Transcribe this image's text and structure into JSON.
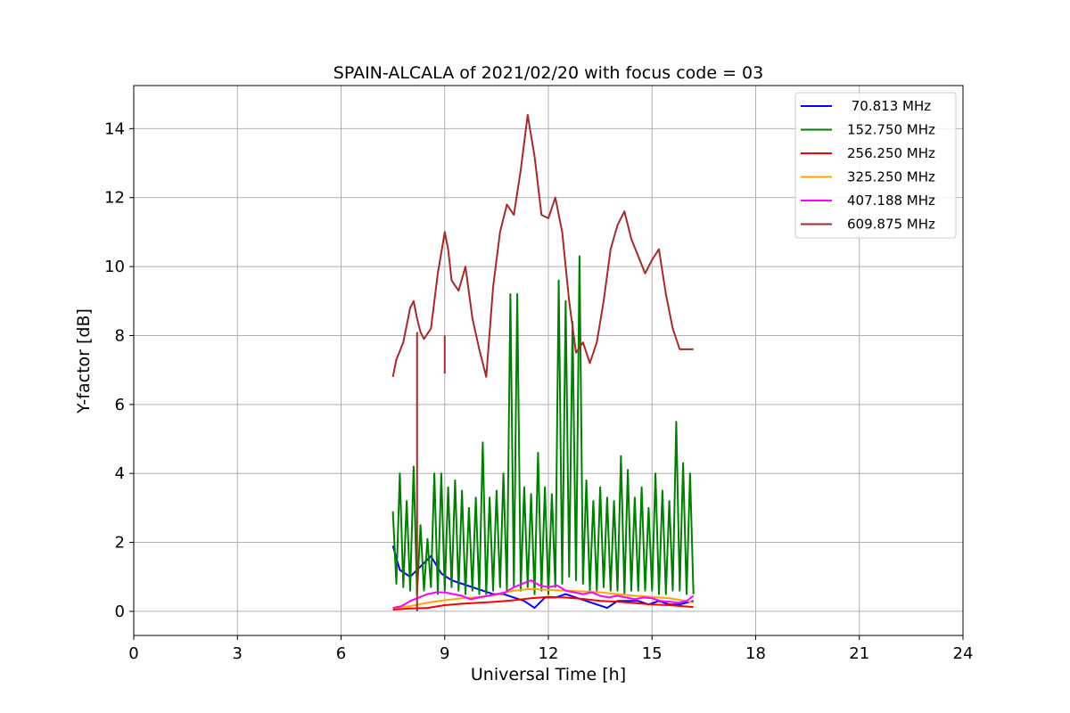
{
  "chart_data": {
    "type": "line",
    "title": "SPAIN-ALCALA of 2021/02/20 with focus code = 03",
    "xlabel": "Universal Time [h]",
    "ylabel": "Y-factor [dB]",
    "xlim": [
      0,
      24
    ],
    "ylim": [
      -0.7,
      15.25
    ],
    "xticks": [
      0,
      3,
      6,
      9,
      12,
      15,
      18,
      21,
      24
    ],
    "yticks": [
      0,
      2,
      4,
      6,
      8,
      10,
      12,
      14
    ],
    "grid": true,
    "legend_position": "top-right",
    "series": [
      {
        "name": " 70.813 MHz",
        "color": "#0000ff",
        "x": [
          7.5,
          7.7,
          8.0,
          8.3,
          8.6,
          8.9,
          9.2,
          9.5,
          9.8,
          10.1,
          10.4,
          10.7,
          11.0,
          11.3,
          11.6,
          11.9,
          12.2,
          12.5,
          12.8,
          13.1,
          13.4,
          13.7,
          14.0,
          14.3,
          14.6,
          14.9,
          15.2,
          15.5,
          15.8,
          16.2
        ],
        "y": [
          1.9,
          1.2,
          1.0,
          1.3,
          1.6,
          1.1,
          0.9,
          0.8,
          0.7,
          0.6,
          0.5,
          0.5,
          0.4,
          0.3,
          0.1,
          0.4,
          0.4,
          0.5,
          0.4,
          0.3,
          0.2,
          0.1,
          0.3,
          0.3,
          0.3,
          0.2,
          0.3,
          0.2,
          0.2,
          0.3
        ]
      },
      {
        "name": "152.750 MHz",
        "color": "#008000",
        "x": [
          7.5,
          7.6,
          7.7,
          7.8,
          7.9,
          8.0,
          8.1,
          8.2,
          8.3,
          8.4,
          8.5,
          8.6,
          8.7,
          8.8,
          8.9,
          9.0,
          9.1,
          9.2,
          9.3,
          9.4,
          9.5,
          9.6,
          9.7,
          9.8,
          9.9,
          10.0,
          10.1,
          10.2,
          10.3,
          10.4,
          10.5,
          10.6,
          10.7,
          10.8,
          10.9,
          11.0,
          11.1,
          11.2,
          11.3,
          11.4,
          11.5,
          11.6,
          11.7,
          11.8,
          11.9,
          12.0,
          12.1,
          12.2,
          12.3,
          12.4,
          12.5,
          12.6,
          12.7,
          12.8,
          12.9,
          13.0,
          13.1,
          13.2,
          13.3,
          13.4,
          13.5,
          13.6,
          13.7,
          13.8,
          13.9,
          14.0,
          14.1,
          14.2,
          14.3,
          14.4,
          14.5,
          14.6,
          14.7,
          14.8,
          14.9,
          15.0,
          15.1,
          15.2,
          15.3,
          15.4,
          15.5,
          15.6,
          15.7,
          15.8,
          15.9,
          16.0,
          16.1,
          16.2
        ],
        "y": [
          2.9,
          0.8,
          4.0,
          0.7,
          3.2,
          0.6,
          4.2,
          0.5,
          2.5,
          0.6,
          2.1,
          0.7,
          4.0,
          0.5,
          4.0,
          0.6,
          3.6,
          0.7,
          3.8,
          0.6,
          3.5,
          0.5,
          3.0,
          0.6,
          3.3,
          0.5,
          4.9,
          0.5,
          3.3,
          0.6,
          3.5,
          0.7,
          4.0,
          0.6,
          9.2,
          0.7,
          9.2,
          0.6,
          3.6,
          0.7,
          3.4,
          0.5,
          4.6,
          0.6,
          3.6,
          0.5,
          3.4,
          0.7,
          9.6,
          0.8,
          9.0,
          1.0,
          8.4,
          0.9,
          10.3,
          0.8,
          3.8,
          0.6,
          3.2,
          0.6,
          3.6,
          0.7,
          3.3,
          0.6,
          3.2,
          0.6,
          4.5,
          0.5,
          4.1,
          0.6,
          3.3,
          0.6,
          3.6,
          0.6,
          3.0,
          0.6,
          4.0,
          0.5,
          3.5,
          0.5,
          3.2,
          0.6,
          5.5,
          0.6,
          4.3,
          0.5,
          4.0,
          0.5
        ]
      },
      {
        "name": "256.250 MHz",
        "color": "#ff0000",
        "x": [
          7.5,
          8.0,
          8.5,
          9.0,
          9.5,
          10.0,
          10.5,
          11.0,
          11.5,
          12.0,
          12.5,
          13.0,
          13.5,
          14.0,
          14.5,
          15.0,
          15.5,
          16.0,
          16.2
        ],
        "y": [
          0.05,
          0.08,
          0.1,
          0.18,
          0.22,
          0.25,
          0.28,
          0.32,
          0.38,
          0.42,
          0.4,
          0.36,
          0.3,
          0.28,
          0.24,
          0.2,
          0.18,
          0.14,
          0.12
        ]
      },
      {
        "name": "325.250 MHz",
        "color": "#ffa500",
        "x": [
          7.5,
          8.0,
          8.5,
          9.0,
          9.5,
          10.0,
          10.5,
          11.0,
          11.5,
          12.0,
          12.5,
          13.0,
          13.5,
          14.0,
          14.5,
          15.0,
          15.5,
          16.0,
          16.2
        ],
        "y": [
          0.1,
          0.15,
          0.25,
          0.32,
          0.38,
          0.42,
          0.48,
          0.6,
          0.65,
          0.62,
          0.6,
          0.58,
          0.55,
          0.5,
          0.45,
          0.42,
          0.38,
          0.3,
          0.25
        ]
      },
      {
        "name": "407.188 MHz",
        "color": "#ff00ff",
        "x": [
          7.5,
          7.75,
          8.0,
          8.25,
          8.5,
          8.75,
          9.0,
          9.25,
          9.5,
          9.75,
          10.0,
          10.25,
          10.5,
          10.75,
          11.0,
          11.25,
          11.5,
          11.75,
          12.0,
          12.25,
          12.5,
          12.75,
          13.0,
          13.25,
          13.5,
          13.75,
          14.0,
          14.25,
          14.5,
          14.75,
          15.0,
          15.25,
          15.5,
          15.75,
          16.0,
          16.2
        ],
        "y": [
          0.1,
          0.15,
          0.3,
          0.4,
          0.5,
          0.55,
          0.55,
          0.5,
          0.45,
          0.35,
          0.4,
          0.45,
          0.5,
          0.55,
          0.7,
          0.8,
          0.9,
          0.75,
          0.7,
          0.75,
          0.6,
          0.55,
          0.5,
          0.55,
          0.45,
          0.4,
          0.45,
          0.4,
          0.35,
          0.4,
          0.38,
          0.3,
          0.28,
          0.25,
          0.3,
          0.45
        ]
      },
      {
        "name": "609.875 MHz",
        "color": "#a52a2a",
        "x": [
          7.5,
          7.6,
          7.8,
          8.0,
          8.1,
          8.2,
          8.3,
          8.4,
          8.6,
          8.8,
          9.0,
          9.1,
          9.2,
          9.4,
          9.6,
          9.8,
          10.0,
          10.2,
          10.4,
          10.6,
          10.8,
          11.0,
          11.2,
          11.4,
          11.6,
          11.8,
          12.0,
          12.2,
          12.4,
          12.6,
          12.8,
          13.0,
          13.2,
          13.4,
          13.6,
          13.8,
          14.0,
          14.2,
          14.4,
          14.6,
          14.8,
          15.0,
          15.2,
          15.4,
          15.6,
          15.8,
          16.0,
          16.2
        ],
        "y": [
          6.8,
          7.3,
          7.8,
          8.8,
          9.0,
          8.5,
          8.1,
          7.9,
          8.2,
          9.8,
          11.0,
          10.5,
          9.6,
          9.3,
          10.0,
          8.5,
          7.6,
          6.8,
          9.4,
          11.0,
          11.8,
          11.5,
          12.8,
          14.4,
          13.2,
          11.5,
          11.4,
          12.0,
          11.0,
          9.0,
          7.5,
          7.8,
          7.2,
          7.8,
          9.0,
          10.5,
          11.2,
          11.6,
          10.8,
          10.3,
          9.8,
          10.2,
          10.5,
          9.2,
          8.2,
          7.6,
          7.6,
          7.6
        ]
      }
    ],
    "annotations": [
      {
        "series": "609.875 MHz",
        "x": 8.2,
        "y_from": 0.0,
        "y_to": 8.1,
        "note": "spike"
      },
      {
        "series": "609.875 MHz",
        "x": 9.0,
        "y_from": 6.9,
        "y_to": 8.0,
        "note": "dip"
      }
    ]
  }
}
